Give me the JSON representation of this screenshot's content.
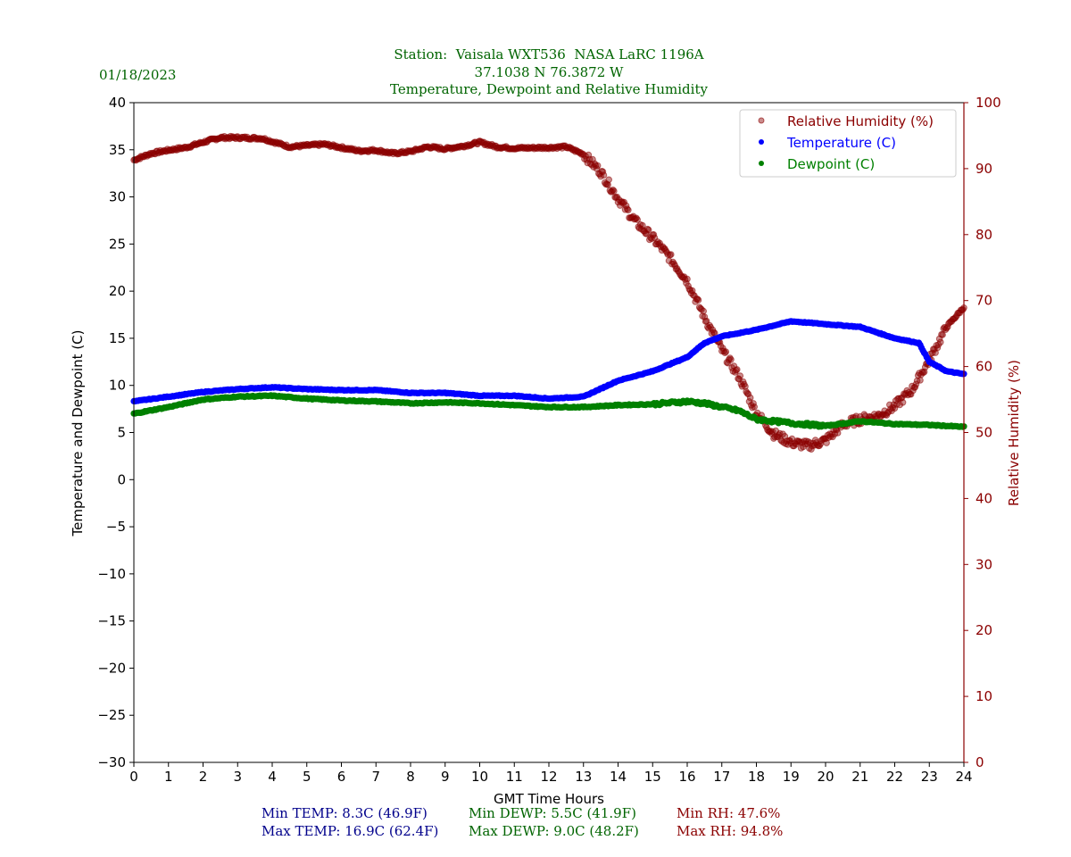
{
  "header": {
    "date": "01/18/2023",
    "station_line": "Station:  Vaisala WXT536  NASA LaRC 1196A",
    "coords_line": "37.1038 N 76.3872 W",
    "title_line": "Temperature, Dewpoint and Relative Humidity"
  },
  "colors": {
    "title": "#006400",
    "temperature": "#0000ff",
    "dewpoint": "#008000",
    "rh": "#8b0000",
    "stats_temp": "#00008b",
    "stats_dewp": "#006400",
    "stats_rh": "#8b0000"
  },
  "stats": {
    "min_temp": "Min TEMP: 8.3C (46.9F)",
    "max_temp": "Max TEMP: 16.9C (62.4F)",
    "min_dewp": "Min DEWP: 5.5C (41.9F)",
    "max_dewp": "Max DEWP: 9.0C (48.2F)",
    "min_rh": "Min RH: 47.6%",
    "max_rh": "Max RH: 94.8%"
  },
  "chart_data": {
    "type": "scatter",
    "title": "Temperature, Dewpoint and Relative Humidity",
    "xlabel": "GMT Time Hours",
    "ylabel": "Temperature and Dewpoint (C)",
    "y2label": "Relative Humidity (%)",
    "xlim": [
      0,
      24
    ],
    "ylim": [
      -30,
      40
    ],
    "y2lim": [
      0,
      100
    ],
    "grid": false,
    "legend_position": "top-right",
    "x_ticks": [
      "0",
      "1",
      "2",
      "3",
      "4",
      "5",
      "6",
      "7",
      "8",
      "9",
      "10",
      "11",
      "12",
      "13",
      "14",
      "15",
      "16",
      "17",
      "18",
      "19",
      "20",
      "21",
      "22",
      "23",
      "24"
    ],
    "y_ticks": [
      "40",
      "35",
      "30",
      "25",
      "20",
      "15",
      "10",
      "5",
      "0",
      "−10",
      "−15",
      "−20",
      "−25",
      "−30"
    ],
    "y_tick_values": [
      40,
      35,
      30,
      25,
      20,
      15,
      10,
      5,
      0,
      -10,
      -15,
      -20,
      -25,
      -30
    ],
    "y_tick_minus5": "−5",
    "y2_ticks": [
      "100",
      "90",
      "80",
      "70",
      "60",
      "50",
      "40",
      "30",
      "20",
      "10",
      "0"
    ],
    "y2_tick_values": [
      100,
      90,
      80,
      70,
      60,
      50,
      40,
      30,
      20,
      10,
      0
    ],
    "series": [
      {
        "name": "Relative Humidity (%)",
        "axis": "right",
        "x": [
          0,
          0.5,
          1,
          1.5,
          2,
          2.5,
          3,
          3.7,
          4.5,
          5,
          5.5,
          6,
          6.5,
          7,
          7.5,
          8,
          8.5,
          9,
          9.5,
          10,
          10.5,
          11,
          12,
          12.5,
          13,
          13.5,
          14,
          14.5,
          15,
          15.5,
          16,
          16.5,
          17,
          17.5,
          18,
          18.5,
          19,
          19.5,
          20,
          20.5,
          21,
          21.5,
          22,
          22.5,
          23,
          23.5,
          24
        ],
        "y": [
          91.3,
          92.3,
          92.8,
          93.2,
          94.0,
          94.7,
          94.7,
          94.6,
          93.3,
          93.5,
          93.7,
          93.2,
          92.7,
          92.8,
          92.3,
          92.6,
          93.3,
          93.0,
          93.4,
          94.0,
          93.3,
          93.1,
          93.2,
          93.3,
          92.2,
          89.5,
          85.5,
          82.0,
          79.5,
          76.5,
          73.0,
          67.5,
          62.5,
          58.5,
          53.0,
          49.8,
          48.5,
          48.0,
          48.8,
          51.2,
          52.0,
          52.5,
          54.0,
          56.5,
          61.0,
          66.0,
          69.0
        ]
      },
      {
        "name": "Temperature (C)",
        "axis": "left",
        "x": [
          0,
          1,
          2,
          3,
          4,
          5,
          6,
          7,
          8,
          9,
          10,
          11,
          12,
          13,
          14,
          15,
          16,
          16.5,
          17,
          18,
          19,
          20,
          21,
          22,
          22.7,
          23,
          23.5,
          24
        ],
        "y": [
          8.3,
          8.8,
          9.3,
          9.6,
          9.8,
          9.6,
          9.5,
          9.5,
          9.2,
          9.2,
          8.9,
          8.9,
          8.6,
          8.8,
          10.5,
          11.5,
          13.0,
          14.5,
          15.2,
          15.9,
          16.8,
          16.5,
          16.2,
          15.0,
          14.5,
          12.5,
          11.5,
          11.2
        ]
      },
      {
        "name": "Dewpoint (C)",
        "axis": "left",
        "x": [
          0,
          1,
          2,
          3,
          4,
          5,
          6,
          7,
          8,
          9,
          10,
          11,
          12,
          13,
          14,
          15,
          16,
          16.5,
          17,
          17.5,
          18,
          19,
          20,
          21,
          22,
          23,
          24
        ],
        "y": [
          7.0,
          7.7,
          8.5,
          8.8,
          8.9,
          8.6,
          8.4,
          8.3,
          8.1,
          8.2,
          8.1,
          7.9,
          7.7,
          7.7,
          7.9,
          8.0,
          8.3,
          8.1,
          7.7,
          7.3,
          6.4,
          6.0,
          5.7,
          6.2,
          5.9,
          5.8,
          5.6
        ]
      }
    ]
  }
}
